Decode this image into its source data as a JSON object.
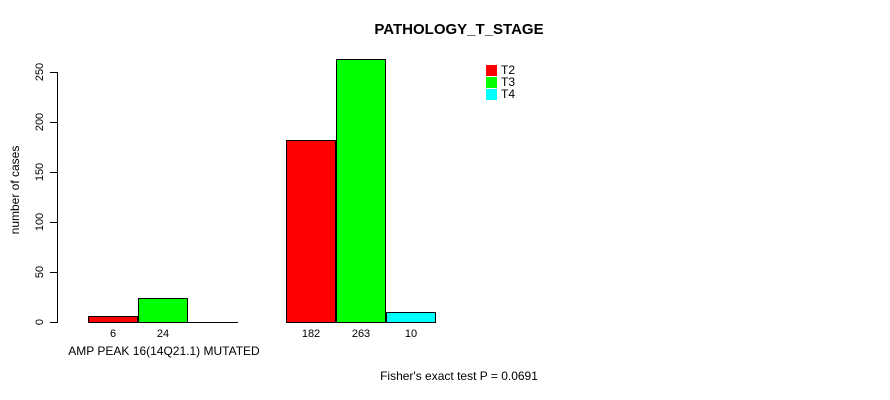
{
  "chart_data": {
    "type": "bar",
    "title": "PATHOLOGY_T_STAGE",
    "ylabel": "number of cases",
    "xlabel": "AMP PEAK 16(14Q21.1) MUTATED",
    "categories": [
      "AMP PEAK 16(14Q21.1) MUTATED",
      ""
    ],
    "series": [
      {
        "name": "T2",
        "color": "#ff0000",
        "values": [
          6,
          182
        ]
      },
      {
        "name": "T3",
        "color": "#00ff00",
        "values": [
          24,
          263
        ]
      },
      {
        "name": "T4",
        "color": "#00ffff",
        "values": [
          0,
          10
        ]
      }
    ],
    "ylim": [
      0,
      250
    ],
    "yticks": [
      0,
      50,
      100,
      150,
      200,
      250
    ],
    "grid": false,
    "legend_position": "top-right",
    "legend_entries": [
      "T2",
      "T3",
      "T4"
    ],
    "bar_value_labels": [
      [
        6,
        24
      ],
      [
        182,
        263,
        10
      ]
    ],
    "annotation": "Fisher's exact test P = 0.0691"
  }
}
